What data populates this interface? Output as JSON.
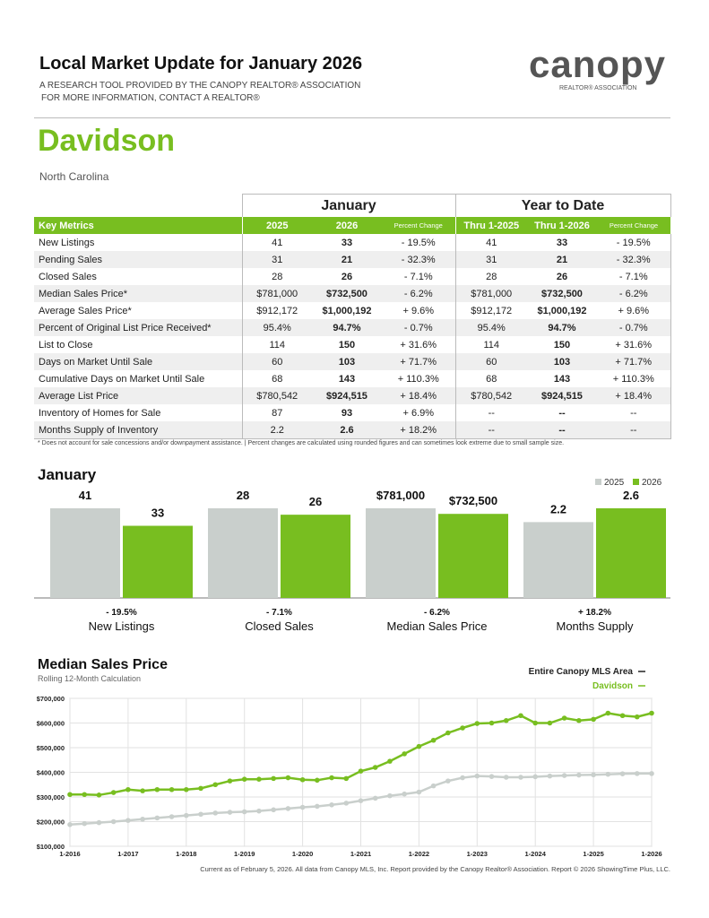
{
  "header": {
    "title": "Local Market Update for January 2026",
    "tagline_1": "A RESEARCH TOOL PROVIDED BY THE CANOPY REALTOR® ASSOCIATION",
    "tagline_2": "FOR MORE INFORMATION, CONTACT A REALTOR®",
    "logo": "canopy",
    "logo_sub": "REALTOR® ASSOCIATION"
  },
  "area": {
    "name": "Davidson",
    "state": "North Carolina"
  },
  "table": {
    "groups": [
      "January",
      "Year to Date"
    ],
    "columns": [
      "Key Metrics",
      "2025",
      "2026",
      "Percent Change",
      "Thru 1-2025",
      "Thru 1-2026",
      "Percent Change"
    ],
    "rows": [
      [
        "New Listings",
        "41",
        "33",
        "- 19.5%",
        "41",
        "33",
        "- 19.5%"
      ],
      [
        "Pending Sales",
        "31",
        "21",
        "- 32.3%",
        "31",
        "21",
        "- 32.3%"
      ],
      [
        "Closed Sales",
        "28",
        "26",
        "- 7.1%",
        "28",
        "26",
        "- 7.1%"
      ],
      [
        "Median Sales Price*",
        "$781,000",
        "$732,500",
        "- 6.2%",
        "$781,000",
        "$732,500",
        "- 6.2%"
      ],
      [
        "Average Sales Price*",
        "$912,172",
        "$1,000,192",
        "+ 9.6%",
        "$912,172",
        "$1,000,192",
        "+ 9.6%"
      ],
      [
        "Percent of Original List Price Received*",
        "95.4%",
        "94.7%",
        "- 0.7%",
        "95.4%",
        "94.7%",
        "- 0.7%"
      ],
      [
        "List to Close",
        "114",
        "150",
        "+ 31.6%",
        "114",
        "150",
        "+ 31.6%"
      ],
      [
        "Days on Market Until Sale",
        "60",
        "103",
        "+ 71.7%",
        "60",
        "103",
        "+ 71.7%"
      ],
      [
        "Cumulative Days on Market Until Sale",
        "68",
        "143",
        "+ 110.3%",
        "68",
        "143",
        "+ 110.3%"
      ],
      [
        "Average List Price",
        "$780,542",
        "$924,515",
        "+ 18.4%",
        "$780,542",
        "$924,515",
        "+ 18.4%"
      ],
      [
        "Inventory of Homes for Sale",
        "87",
        "93",
        "+ 6.9%",
        "--",
        "--",
        "--"
      ],
      [
        "Months Supply of Inventory",
        "2.2",
        "2.6",
        "+ 18.2%",
        "--",
        "--",
        "--"
      ]
    ],
    "footnote": "* Does not account for sale concessions and/or downpayment assistance.  |  Percent changes are calculated using rounded figures and can sometimes look extreme due to small sample size."
  },
  "chart_data": [
    {
      "type": "bar",
      "title": "January",
      "categories": [
        "New Listings",
        "Closed Sales",
        "Median Sales Price",
        "Months Supply"
      ],
      "series": [
        {
          "name": "2025",
          "color": "#c9cfcc",
          "values": [
            41,
            28,
            781000,
            2.2
          ],
          "value_labels": [
            "41",
            "28",
            "$781,000",
            "2.2"
          ]
        },
        {
          "name": "2026",
          "color": "#78be20",
          "values": [
            33,
            26,
            732500,
            2.6
          ],
          "value_labels": [
            "33",
            "26",
            "$732,500",
            "2.6"
          ]
        }
      ],
      "annotations": [
        "- 19.5%",
        "- 7.1%",
        "- 6.2%",
        "+ 18.2%"
      ],
      "legend": "top-right"
    },
    {
      "type": "line",
      "title": "Median Sales Price",
      "subtitle": "Rolling 12-Month Calculation",
      "x": [
        "1-2016",
        "4-2016",
        "7-2016",
        "10-2016",
        "1-2017",
        "4-2017",
        "7-2017",
        "10-2017",
        "1-2018",
        "4-2018",
        "7-2018",
        "10-2018",
        "1-2019",
        "4-2019",
        "7-2019",
        "10-2019",
        "1-2020",
        "4-2020",
        "7-2020",
        "10-2020",
        "1-2021",
        "4-2021",
        "7-2021",
        "10-2021",
        "1-2022",
        "4-2022",
        "7-2022",
        "10-2022",
        "1-2023",
        "4-2023",
        "7-2023",
        "10-2023",
        "1-2024",
        "4-2024",
        "7-2024",
        "10-2024",
        "1-2025",
        "4-2025",
        "7-2025",
        "10-2025",
        "1-2026"
      ],
      "series": [
        {
          "name": "Entire Canopy MLS Area",
          "color": "#c9cfcc",
          "values": [
            188000,
            192000,
            196000,
            200000,
            205000,
            210000,
            215000,
            220000,
            225000,
            230000,
            235000,
            238000,
            240000,
            243000,
            248000,
            253000,
            258000,
            262000,
            268000,
            275000,
            285000,
            295000,
            305000,
            312000,
            320000,
            345000,
            365000,
            378000,
            385000,
            383000,
            380000,
            380000,
            382000,
            385000,
            387000,
            389000,
            390000,
            392000,
            394000,
            395000,
            395000
          ]
        },
        {
          "name": "Davidson",
          "color": "#78be20",
          "values": [
            310000,
            310000,
            308000,
            318000,
            330000,
            325000,
            330000,
            330000,
            330000,
            335000,
            350000,
            365000,
            372000,
            372000,
            375000,
            378000,
            370000,
            368000,
            378000,
            375000,
            405000,
            420000,
            445000,
            475000,
            505000,
            530000,
            560000,
            580000,
            598000,
            600000,
            610000,
            630000,
            600000,
            600000,
            620000,
            610000,
            615000,
            640000,
            630000,
            625000,
            640000
          ]
        }
      ],
      "ylim": [
        100000,
        700000
      ],
      "yticks": [
        {
          "value": 100000,
          "label": "$100,000"
        },
        {
          "value": 200000,
          "label": "$200,000"
        },
        {
          "value": 300000,
          "label": "$300,000"
        },
        {
          "value": 400000,
          "label": "$400,000"
        },
        {
          "value": 500000,
          "label": "$500,000"
        },
        {
          "value": 600000,
          "label": "$600,000"
        },
        {
          "value": 700000,
          "label": "$700,000"
        }
      ],
      "xticks": [
        "1-2016",
        "1-2017",
        "1-2018",
        "1-2019",
        "1-2020",
        "1-2021",
        "1-2022",
        "1-2023",
        "1-2024",
        "1-2025",
        "1-2026"
      ],
      "grid": true,
      "legend": "top-right"
    }
  ],
  "footer": "Current as of February 5, 2026. All data from Canopy MLS, Inc. Report provided by the Canopy Realtor® Association. Report © 2026 ShowingTime Plus, LLC."
}
